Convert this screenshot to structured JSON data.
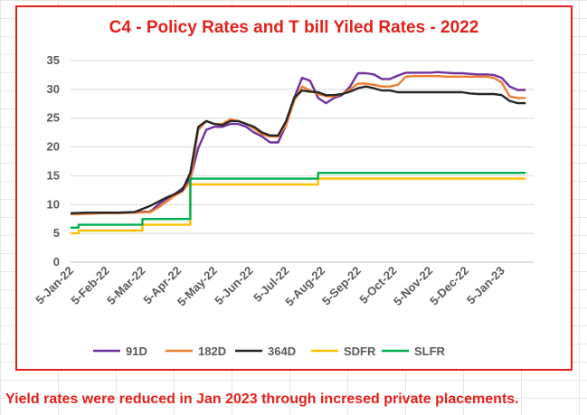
{
  "footnote": "Yield rates were reduced in Jan 2023 through incresed private placements.",
  "chart_data": {
    "type": "line",
    "title": "C4 - Policy Rates and T bill Yiled Rates - 2022",
    "xlabel": "",
    "ylabel": "",
    "ylim": [
      0,
      35
    ],
    "yticks": [
      0,
      5,
      10,
      15,
      20,
      25,
      30,
      35
    ],
    "grid": "horizontal",
    "legend": "bottom",
    "x_tick_labels": [
      "5-Jan-22",
      "5-Feb-22",
      "5-Mar-22",
      "5-Apr-22",
      "5-May-22",
      "5-Jun-22",
      "5-Jul-22",
      "5-Aug-22",
      "5-Sep-22",
      "5-Oct-22",
      "5-Nov-22",
      "5-Dec-22",
      "5-Jan-23"
    ],
    "x_range_weeks": [
      0,
      58
    ],
    "series": [
      {
        "name": "91D",
        "color": "#7030a0",
        "x": [
          0,
          2,
          4,
          6,
          8,
          10,
          11,
          12,
          13,
          14,
          15,
          16,
          17,
          18,
          19,
          20,
          21,
          22,
          23,
          24,
          25,
          26,
          27,
          28,
          29,
          30,
          31,
          32,
          33,
          34,
          35,
          36,
          37,
          38,
          39,
          40,
          41,
          42,
          43,
          44,
          45,
          46,
          47,
          48,
          49,
          50,
          51,
          52,
          53,
          54,
          55,
          56,
          57
        ],
        "y": [
          8.4,
          8.5,
          8.6,
          8.6,
          8.7,
          8.8,
          10.0,
          11.0,
          11.8,
          12.8,
          14.5,
          19.8,
          23.0,
          23.5,
          23.5,
          24.0,
          24.0,
          23.5,
          22.5,
          21.8,
          20.8,
          20.8,
          23.8,
          28.5,
          32.0,
          31.5,
          28.5,
          27.6,
          28.5,
          29.0,
          30.5,
          32.8,
          32.8,
          32.6,
          31.8,
          31.8,
          32.4,
          32.9,
          32.9,
          32.9,
          32.9,
          33.0,
          32.9,
          32.8,
          32.8,
          32.7,
          32.6,
          32.6,
          32.5,
          32.0,
          30.5,
          29.9,
          29.9
        ]
      },
      {
        "name": "182D",
        "color": "#ed7d31",
        "x": [
          0,
          2,
          4,
          6,
          8,
          10,
          11,
          12,
          13,
          14,
          15,
          16,
          17,
          18,
          19,
          20,
          21,
          22,
          23,
          24,
          25,
          26,
          27,
          28,
          29,
          30,
          31,
          32,
          33,
          34,
          35,
          36,
          37,
          38,
          39,
          40,
          41,
          42,
          43,
          44,
          45,
          46,
          47,
          48,
          49,
          50,
          51,
          52,
          53,
          54,
          55,
          56,
          57
        ],
        "y": [
          8.3,
          8.4,
          8.5,
          8.5,
          8.6,
          8.7,
          9.5,
          10.5,
          11.5,
          12.3,
          14.0,
          23.0,
          24.5,
          24.0,
          24.0,
          24.8,
          24.5,
          24.0,
          23.2,
          22.2,
          21.8,
          21.8,
          23.8,
          28.0,
          30.5,
          29.8,
          29.2,
          28.8,
          28.8,
          29.2,
          30.0,
          31.0,
          31.0,
          30.8,
          30.5,
          30.5,
          30.8,
          32.2,
          32.3,
          32.3,
          32.3,
          32.3,
          32.2,
          32.2,
          32.2,
          32.2,
          32.2,
          32.2,
          32.0,
          31.2,
          28.8,
          28.5,
          28.5
        ]
      },
      {
        "name": "364D",
        "color": "#262626",
        "x": [
          0,
          2,
          4,
          6,
          8,
          10,
          11,
          12,
          13,
          14,
          15,
          16,
          17,
          18,
          19,
          20,
          21,
          22,
          23,
          24,
          25,
          26,
          27,
          28,
          29,
          30,
          31,
          32,
          33,
          34,
          35,
          36,
          37,
          38,
          39,
          40,
          41,
          42,
          43,
          44,
          45,
          46,
          47,
          48,
          49,
          50,
          51,
          52,
          53,
          54,
          55,
          56,
          57
        ],
        "y": [
          8.5,
          8.6,
          8.6,
          8.6,
          8.7,
          9.8,
          10.5,
          11.2,
          11.8,
          12.5,
          15.5,
          23.5,
          24.5,
          24.0,
          23.8,
          24.5,
          24.5,
          24.0,
          23.5,
          22.5,
          22.0,
          22.0,
          24.5,
          28.5,
          29.8,
          29.6,
          29.5,
          29.0,
          29.0,
          29.2,
          29.6,
          30.2,
          30.5,
          30.2,
          29.8,
          29.8,
          29.5,
          29.5,
          29.5,
          29.5,
          29.5,
          29.5,
          29.5,
          29.5,
          29.5,
          29.3,
          29.2,
          29.2,
          29.2,
          29.0,
          28.0,
          27.6,
          27.6
        ]
      },
      {
        "name": "SDFR",
        "color": "#ffc000",
        "x": [
          0,
          1,
          1.01,
          9,
          9.01,
          15,
          15.01,
          31,
          31.01,
          57
        ],
        "y": [
          5.0,
          5.0,
          5.5,
          5.5,
          6.5,
          6.5,
          13.5,
          13.5,
          14.5,
          14.5
        ]
      },
      {
        "name": "SLFR",
        "color": "#00b050",
        "x": [
          0,
          1,
          1.01,
          9,
          9.01,
          15,
          15.01,
          31,
          31.01,
          57
        ],
        "y": [
          6.0,
          6.0,
          6.5,
          6.5,
          7.5,
          7.5,
          14.5,
          14.5,
          15.5,
          15.5
        ]
      }
    ]
  }
}
